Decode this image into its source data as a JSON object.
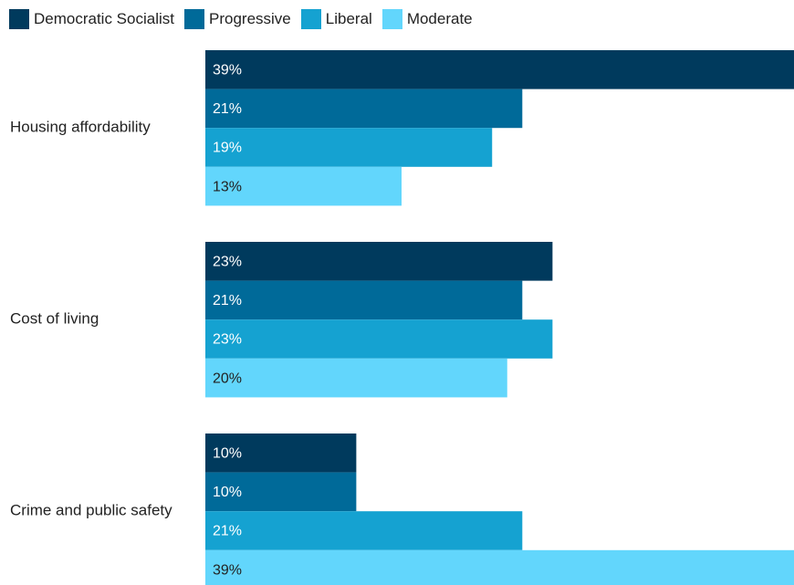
{
  "chart_data": {
    "type": "bar",
    "orientation": "horizontal",
    "categories": [
      "Housing affordability",
      "Cost of living",
      "Crime and public safety"
    ],
    "series": [
      {
        "name": "Democratic Socialist",
        "color": "#003a5d",
        "values": [
          39,
          23,
          10
        ],
        "labels": [
          "39%",
          "23%",
          "10%"
        ]
      },
      {
        "name": "Progressive",
        "color": "#006a99",
        "values": [
          21,
          21,
          10
        ],
        "labels": [
          "21%",
          "21%",
          "10%"
        ]
      },
      {
        "name": "Liberal",
        "color": "#15a2d1",
        "values": [
          19,
          23,
          21
        ],
        "labels": [
          "19%",
          "23%",
          "21%"
        ]
      },
      {
        "name": "Moderate",
        "color": "#62d6fc",
        "values": [
          13,
          20,
          39
        ],
        "labels": [
          "13%",
          "20%",
          "39%"
        ]
      }
    ],
    "xlim": [
      0,
      39
    ],
    "grid": false,
    "legend": "top-left",
    "label_colors": {
      "on_dark": "#ffffff",
      "on_light": "#222222"
    }
  }
}
